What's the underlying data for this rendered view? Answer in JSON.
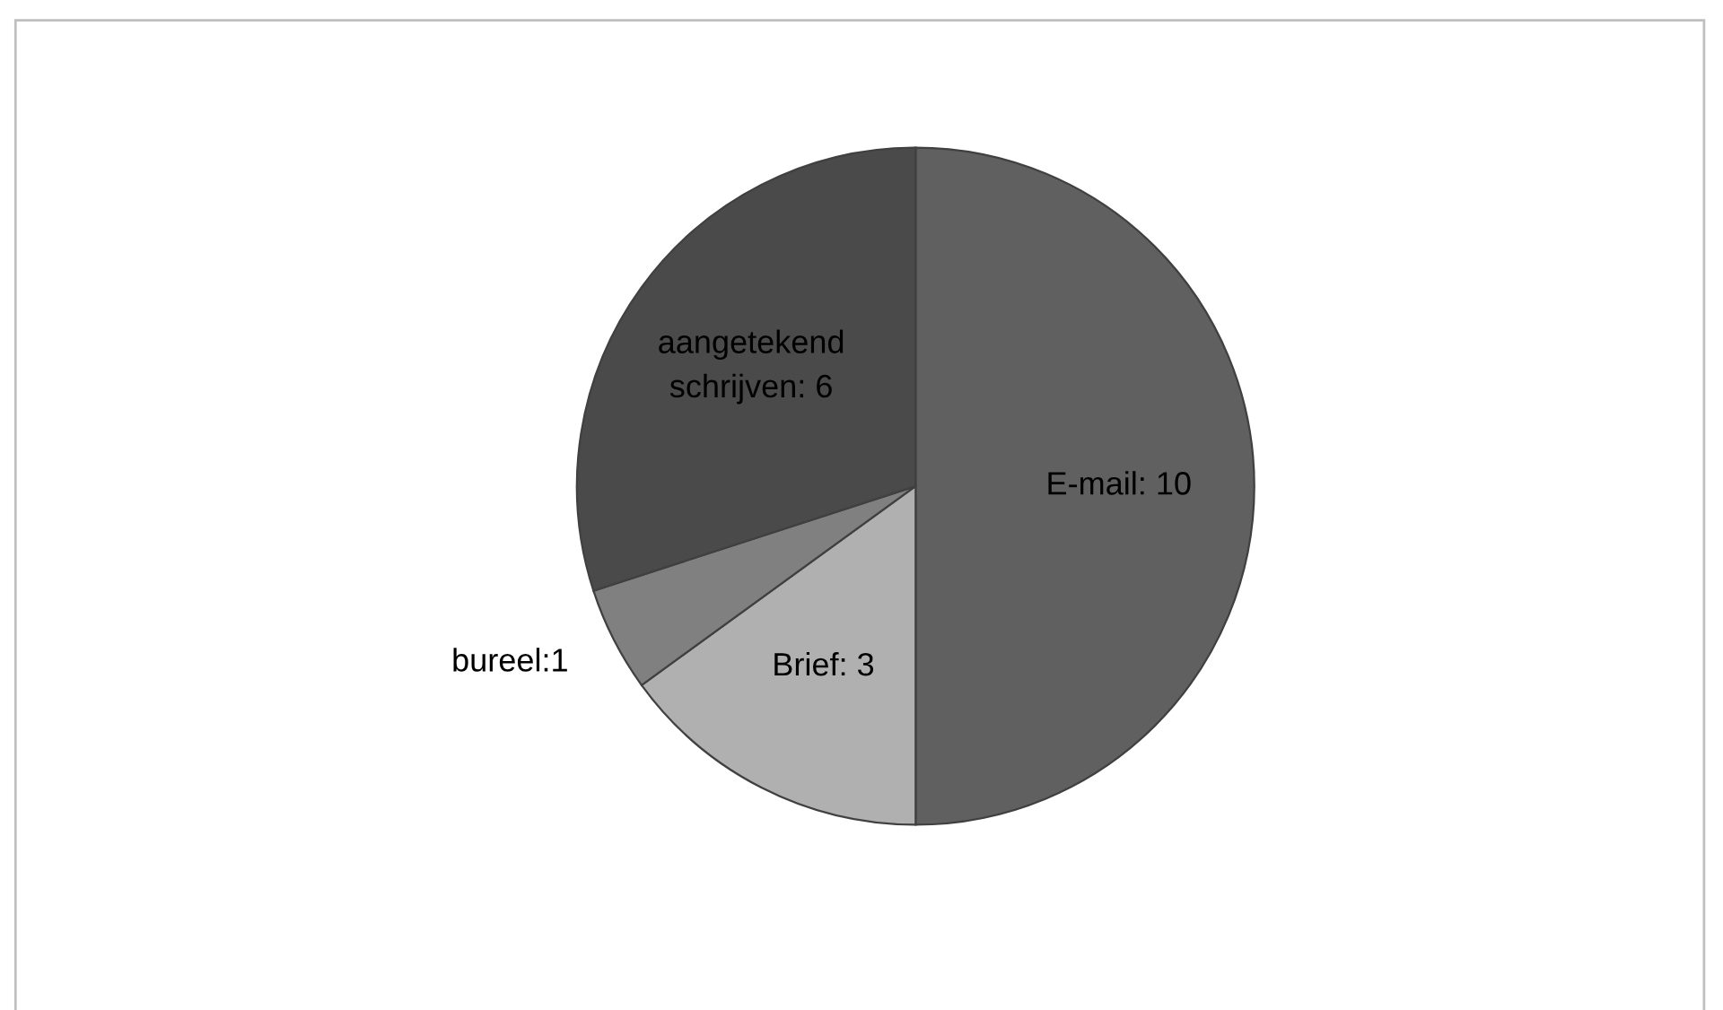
{
  "chart_data": {
    "type": "pie",
    "categories": [
      "E-mail: 10",
      "Brief: 3",
      "bureel:1",
      "aangetekend schrijven: 6"
    ],
    "values": [
      10,
      3,
      1,
      6
    ],
    "colors": [
      "#606060",
      "#b0b0b0",
      "#808080",
      "#4a4a4a"
    ],
    "legend": false
  }
}
